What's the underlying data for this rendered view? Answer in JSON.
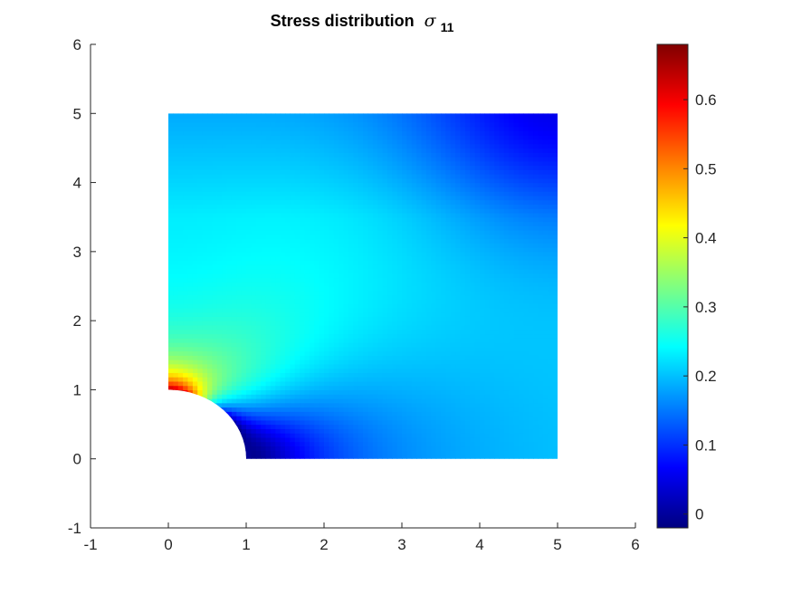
{
  "chart_data": {
    "type": "heatmap",
    "title": "Stress distribution",
    "title_symbol": "σ",
    "title_subscript": "11",
    "xlim": [
      -1,
      6
    ],
    "ylim": [
      -1,
      6
    ],
    "xticks": [
      "-1",
      "0",
      "1",
      "2",
      "3",
      "4",
      "5",
      "6"
    ],
    "yticks": [
      "-1",
      "0",
      "1",
      "2",
      "3",
      "4",
      "5",
      "6"
    ],
    "domain": {
      "shape": "quarter-plate with circular hole",
      "square": {
        "x": [
          0,
          5
        ],
        "y": [
          0,
          5
        ]
      },
      "hole": {
        "center": [
          0,
          0
        ],
        "radius": 1
      }
    },
    "colormap": "jet",
    "clim": [
      -0.02,
      0.68
    ],
    "colorbar": {
      "location": "right",
      "ticks": [
        "0",
        "0.1",
        "0.2",
        "0.3",
        "0.4",
        "0.5",
        "0.6"
      ]
    },
    "field_estimates": [
      {
        "x": 0.05,
        "y": 1.02,
        "value": 0.66
      },
      {
        "x": 0.3,
        "y": 1.2,
        "value": 0.45
      },
      {
        "x": 1.05,
        "y": 0.05,
        "value": -0.02
      },
      {
        "x": 2.5,
        "y": 0.1,
        "value": 0.15
      },
      {
        "x": 0.2,
        "y": 2.3,
        "value": 0.23
      },
      {
        "x": 2.5,
        "y": 2.5,
        "value": 0.19
      },
      {
        "x": 5.0,
        "y": 0.1,
        "value": 0.19
      },
      {
        "x": 0.0,
        "y": 5.0,
        "value": 0.16
      },
      {
        "x": 4.9,
        "y": 4.9,
        "value": 0.07
      }
    ]
  }
}
